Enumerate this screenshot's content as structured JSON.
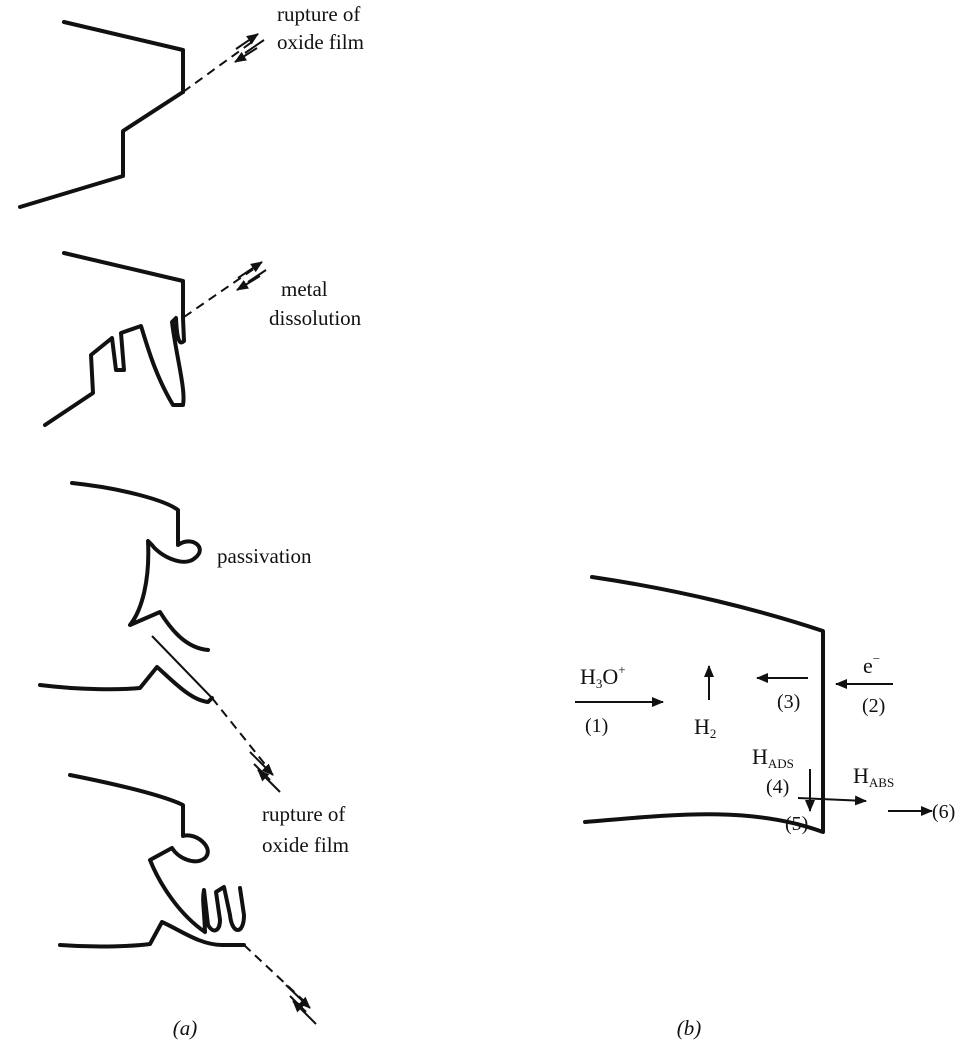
{
  "panel_a": {
    "stage1_label": [
      "rupture of",
      "oxide film"
    ],
    "stage2_label": [
      "metal",
      "dissolution"
    ],
    "stage3_label": "passivation",
    "stage4_label": [
      "rupture of",
      "oxide film"
    ],
    "caption": "(a)"
  },
  "panel_b": {
    "h3o_base": "H",
    "h3o_sub": "3",
    "h3o_rest": "O",
    "h3o_sup": "+",
    "step1": "(1)",
    "h2_base": "H",
    "h2_sub": "2",
    "step3": "(3)",
    "electron_base": "e",
    "electron_sup": "−",
    "step2": "(2)",
    "hads_base": "H",
    "hads_sub": "ADS",
    "step4": "(4)",
    "habs_base": "H",
    "habs_sub": "ABS",
    "step5": "(5)",
    "step6": "(6)",
    "caption": "(b)"
  }
}
